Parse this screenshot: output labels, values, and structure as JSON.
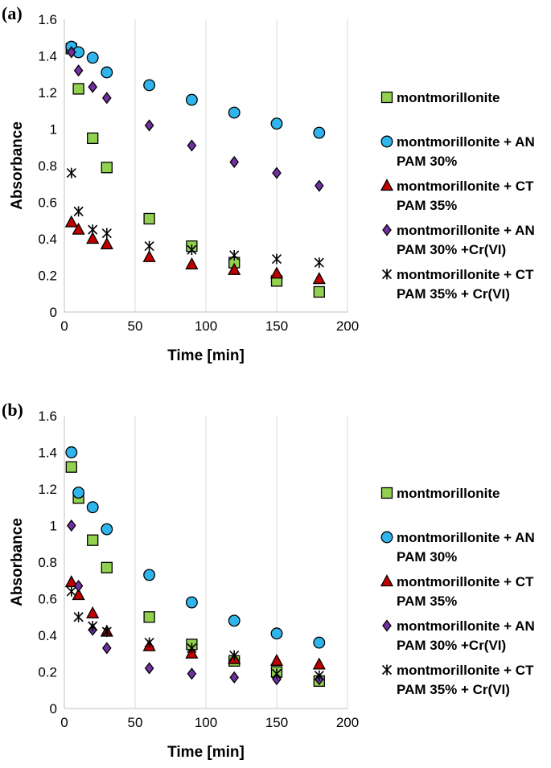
{
  "chart_data": [
    {
      "type": "scatter",
      "panel_label": "(a)",
      "xlabel": "Time [min]",
      "ylabel": "Absorbance",
      "xlim": [
        0,
        200
      ],
      "ylim": [
        0,
        1.6
      ],
      "xticks": [
        "0",
        "50",
        "100",
        "150",
        "200"
      ],
      "yticks": [
        "0",
        "0.2",
        "0.4",
        "0.6",
        "0.8",
        "1",
        "1.2",
        "1.4",
        "1.6"
      ],
      "grid": "vertical",
      "legend_position": "right",
      "series": [
        {
          "name": "montmorillonite",
          "legend_lines": [
            "montmorillonite"
          ],
          "marker": "square",
          "color": "#92D050",
          "x": [
            5,
            10,
            20,
            30,
            60,
            90,
            120,
            150,
            180
          ],
          "y": [
            1.44,
            1.22,
            0.95,
            0.79,
            0.51,
            0.36,
            0.27,
            0.17,
            0.11
          ]
        },
        {
          "name": "montmorillonite + AN PAM 30%",
          "legend_lines": [
            "montmorillonite + AN",
            "PAM 30%"
          ],
          "marker": "circle",
          "color": "#2FB5EC",
          "x": [
            5,
            10,
            20,
            30,
            60,
            90,
            120,
            150,
            180
          ],
          "y": [
            1.45,
            1.42,
            1.39,
            1.31,
            1.24,
            1.16,
            1.09,
            1.03,
            0.98
          ]
        },
        {
          "name": "montmorillonite + CT PAM 35%",
          "legend_lines": [
            "montmorillonite + CT",
            "PAM 35%"
          ],
          "marker": "triangle",
          "color": "#C00000",
          "x": [
            5,
            10,
            20,
            30,
            60,
            90,
            120,
            150,
            180
          ],
          "y": [
            0.49,
            0.45,
            0.4,
            0.37,
            0.3,
            0.26,
            0.23,
            0.21,
            0.18
          ]
        },
        {
          "name": "montmorillonite + AN PAM 30% +Cr(VI)",
          "legend_lines": [
            "montmorillonite + AN",
            "PAM 30% +Cr(VI)"
          ],
          "marker": "diamond",
          "color": "#7030A0",
          "x": [
            5,
            10,
            20,
            30,
            60,
            90,
            120,
            150,
            180
          ],
          "y": [
            1.42,
            1.32,
            1.23,
            1.17,
            1.02,
            0.91,
            0.82,
            0.76,
            0.69
          ]
        },
        {
          "name": "montmorillonite + CT PAM 35% + Cr(VI)",
          "legend_lines": [
            "montmorillonite + CT",
            "PAM 35% + Cr(VI)"
          ],
          "marker": "star",
          "color": "#000000",
          "x": [
            5,
            10,
            20,
            30,
            60,
            90,
            120,
            150,
            180
          ],
          "y": [
            0.76,
            0.55,
            0.45,
            0.43,
            0.36,
            0.34,
            0.31,
            0.29,
            0.27
          ]
        }
      ]
    },
    {
      "type": "scatter",
      "panel_label": "(b)",
      "xlabel": "Time [min]",
      "ylabel": "Absorbance",
      "xlim": [
        0,
        200
      ],
      "ylim": [
        0,
        1.6
      ],
      "xticks": [
        "0",
        "50",
        "100",
        "150",
        "200"
      ],
      "yticks": [
        "0",
        "0.2",
        "0.4",
        "0.6",
        "0.8",
        "1",
        "1.2",
        "1.4",
        "1.6"
      ],
      "grid": "vertical",
      "legend_position": "right",
      "series": [
        {
          "name": "montmorillonite",
          "legend_lines": [
            "montmorillonite"
          ],
          "marker": "square",
          "color": "#92D050",
          "x": [
            5,
            10,
            20,
            30,
            60,
            90,
            120,
            150,
            180
          ],
          "y": [
            1.32,
            1.15,
            0.92,
            0.77,
            0.5,
            0.35,
            0.26,
            0.2,
            0.15
          ]
        },
        {
          "name": "montmorillonite + AN PAM 30%",
          "legend_lines": [
            "montmorillonite + AN",
            "PAM 30%"
          ],
          "marker": "circle",
          "color": "#2FB5EC",
          "x": [
            5,
            10,
            20,
            30,
            60,
            90,
            120,
            150,
            180
          ],
          "y": [
            1.4,
            1.18,
            1.1,
            0.98,
            0.73,
            0.58,
            0.48,
            0.41,
            0.36
          ]
        },
        {
          "name": "montmorillonite + CT PAM 35%",
          "legend_lines": [
            "montmorillonite + CT",
            "PAM 35%"
          ],
          "marker": "triangle",
          "color": "#C00000",
          "x": [
            5,
            10,
            20,
            30,
            60,
            90,
            120,
            150,
            180
          ],
          "y": [
            0.69,
            0.62,
            0.52,
            0.42,
            0.34,
            0.3,
            0.27,
            0.26,
            0.24
          ]
        },
        {
          "name": "montmorillonite + AN PAM 30% +Cr(VI)",
          "legend_lines": [
            "montmorillonite + AN",
            "PAM 30% +Cr(VI)"
          ],
          "marker": "diamond",
          "color": "#7030A0",
          "x": [
            5,
            10,
            20,
            30,
            60,
            90,
            120,
            150,
            180
          ],
          "y": [
            1.0,
            0.67,
            0.43,
            0.33,
            0.22,
            0.19,
            0.17,
            0.16,
            0.16
          ]
        },
        {
          "name": "montmorillonite + CT PAM 35% + Cr(VI)",
          "legend_lines": [
            "montmorillonite + CT",
            "PAM 35% + Cr(VI)"
          ],
          "marker": "star",
          "color": "#000000",
          "x": [
            5,
            10,
            20,
            30,
            60,
            90,
            120,
            150,
            180
          ],
          "y": [
            0.64,
            0.5,
            0.45,
            0.42,
            0.36,
            0.33,
            0.29,
            0.19,
            0.18
          ]
        }
      ]
    }
  ]
}
